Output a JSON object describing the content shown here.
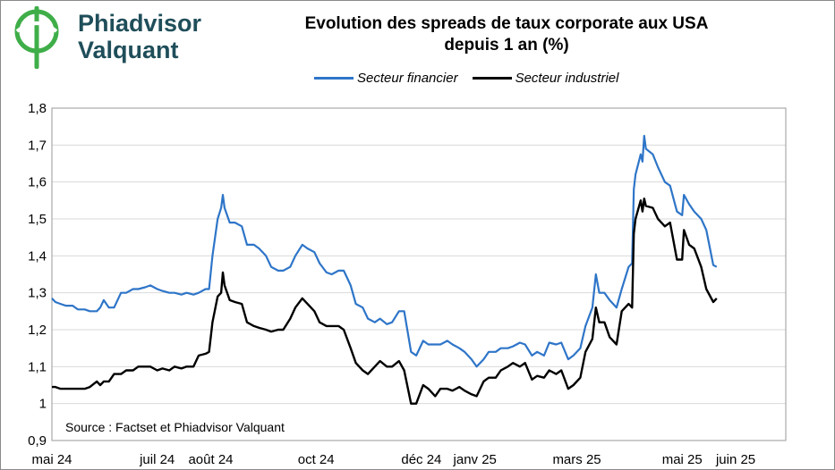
{
  "brand": {
    "line1": "Phiadvisor",
    "line2": "Valquant",
    "colors": {
      "logo_green": "#3fae49",
      "logo_navy": "#1f4e5a"
    }
  },
  "chart_data": {
    "type": "line",
    "title_line1": "Evolution des spreads de taux corporate aux USA",
    "title_line2": "depuis 1 an (%)",
    "source": "Source : Factset et Phiadvisor Valquant",
    "legend_position": "top",
    "grid": true,
    "ylim": [
      0.9,
      1.8
    ],
    "yticks": [
      "0,9",
      "1",
      "1,1",
      "1,2",
      "1,3",
      "1,4",
      "1,5",
      "1,6",
      "1,7",
      "1,8"
    ],
    "ytick_values": [
      0.9,
      1.0,
      1.1,
      1.2,
      1.3,
      1.4,
      1.5,
      1.6,
      1.7,
      1.8
    ],
    "xlim": [
      "2024-05-01",
      "2025-06-30"
    ],
    "xticks": [
      {
        "label": "mai 24",
        "date": "2024-05-01"
      },
      {
        "label": "juil 24",
        "date": "2024-07-01"
      },
      {
        "label": "août 24",
        "date": "2024-08-01"
      },
      {
        "label": "oct 24",
        "date": "2024-10-01"
      },
      {
        "label": "déc 24",
        "date": "2024-12-01"
      },
      {
        "label": "janv 25",
        "date": "2025-01-01"
      },
      {
        "label": "mars 25",
        "date": "2025-03-01"
      },
      {
        "label": "mai 25",
        "date": "2025-05-01"
      },
      {
        "label": "juin 25",
        "date": "2025-06-01"
      }
    ],
    "series": [
      {
        "name": "Secteur financier",
        "color": "#2e75c8",
        "points": [
          [
            "2024-05-01",
            1.285
          ],
          [
            "2024-05-03",
            1.275
          ],
          [
            "2024-05-06",
            1.27
          ],
          [
            "2024-05-09",
            1.265
          ],
          [
            "2024-05-13",
            1.265
          ],
          [
            "2024-05-16",
            1.255
          ],
          [
            "2024-05-20",
            1.255
          ],
          [
            "2024-05-23",
            1.25
          ],
          [
            "2024-05-27",
            1.25
          ],
          [
            "2024-05-29",
            1.26
          ],
          [
            "2024-05-31",
            1.28
          ],
          [
            "2024-06-03",
            1.26
          ],
          [
            "2024-06-06",
            1.26
          ],
          [
            "2024-06-10",
            1.3
          ],
          [
            "2024-06-13",
            1.3
          ],
          [
            "2024-06-17",
            1.31
          ],
          [
            "2024-06-20",
            1.31
          ],
          [
            "2024-06-24",
            1.315
          ],
          [
            "2024-06-27",
            1.32
          ],
          [
            "2024-07-01",
            1.31
          ],
          [
            "2024-07-04",
            1.305
          ],
          [
            "2024-07-08",
            1.3
          ],
          [
            "2024-07-11",
            1.3
          ],
          [
            "2024-07-15",
            1.295
          ],
          [
            "2024-07-18",
            1.3
          ],
          [
            "2024-07-22",
            1.295
          ],
          [
            "2024-07-25",
            1.3
          ],
          [
            "2024-07-29",
            1.31
          ],
          [
            "2024-07-31",
            1.31
          ],
          [
            "2024-08-02",
            1.4
          ],
          [
            "2024-08-05",
            1.5
          ],
          [
            "2024-08-07",
            1.53
          ],
          [
            "2024-08-08",
            1.565
          ],
          [
            "2024-08-09",
            1.53
          ],
          [
            "2024-08-12",
            1.49
          ],
          [
            "2024-08-15",
            1.49
          ],
          [
            "2024-08-19",
            1.48
          ],
          [
            "2024-08-22",
            1.43
          ],
          [
            "2024-08-26",
            1.43
          ],
          [
            "2024-08-29",
            1.42
          ],
          [
            "2024-09-02",
            1.4
          ],
          [
            "2024-09-05",
            1.37
          ],
          [
            "2024-09-09",
            1.36
          ],
          [
            "2024-09-12",
            1.36
          ],
          [
            "2024-09-16",
            1.37
          ],
          [
            "2024-09-19",
            1.4
          ],
          [
            "2024-09-23",
            1.43
          ],
          [
            "2024-09-26",
            1.42
          ],
          [
            "2024-09-30",
            1.41
          ],
          [
            "2024-10-03",
            1.38
          ],
          [
            "2024-10-07",
            1.355
          ],
          [
            "2024-10-10",
            1.35
          ],
          [
            "2024-10-14",
            1.36
          ],
          [
            "2024-10-17",
            1.36
          ],
          [
            "2024-10-21",
            1.32
          ],
          [
            "2024-10-24",
            1.27
          ],
          [
            "2024-10-28",
            1.26
          ],
          [
            "2024-10-31",
            1.23
          ],
          [
            "2024-11-04",
            1.22
          ],
          [
            "2024-11-07",
            1.23
          ],
          [
            "2024-11-11",
            1.215
          ],
          [
            "2024-11-14",
            1.22
          ],
          [
            "2024-11-18",
            1.25
          ],
          [
            "2024-11-21",
            1.25
          ],
          [
            "2024-11-25",
            1.14
          ],
          [
            "2024-11-28",
            1.13
          ],
          [
            "2024-12-02",
            1.17
          ],
          [
            "2024-12-05",
            1.16
          ],
          [
            "2024-12-09",
            1.16
          ],
          [
            "2024-12-12",
            1.16
          ],
          [
            "2024-12-16",
            1.17
          ],
          [
            "2024-12-19",
            1.16
          ],
          [
            "2024-12-23",
            1.15
          ],
          [
            "2024-12-26",
            1.14
          ],
          [
            "2024-12-30",
            1.12
          ],
          [
            "2025-01-02",
            1.1
          ],
          [
            "2025-01-06",
            1.12
          ],
          [
            "2025-01-09",
            1.14
          ],
          [
            "2025-01-13",
            1.14
          ],
          [
            "2025-01-16",
            1.15
          ],
          [
            "2025-01-20",
            1.15
          ],
          [
            "2025-01-23",
            1.155
          ],
          [
            "2025-01-27",
            1.165
          ],
          [
            "2025-01-30",
            1.16
          ],
          [
            "2025-02-03",
            1.13
          ],
          [
            "2025-02-06",
            1.14
          ],
          [
            "2025-02-10",
            1.13
          ],
          [
            "2025-02-13",
            1.165
          ],
          [
            "2025-02-17",
            1.16
          ],
          [
            "2025-02-20",
            1.165
          ],
          [
            "2025-02-24",
            1.12
          ],
          [
            "2025-02-27",
            1.13
          ],
          [
            "2025-03-03",
            1.15
          ],
          [
            "2025-03-06",
            1.21
          ],
          [
            "2025-03-10",
            1.26
          ],
          [
            "2025-03-12",
            1.35
          ],
          [
            "2025-03-14",
            1.3
          ],
          [
            "2025-03-17",
            1.3
          ],
          [
            "2025-03-20",
            1.28
          ],
          [
            "2025-03-24",
            1.26
          ],
          [
            "2025-03-27",
            1.31
          ],
          [
            "2025-03-31",
            1.37
          ],
          [
            "2025-04-02",
            1.38
          ],
          [
            "2025-04-03",
            1.58
          ],
          [
            "2025-04-04",
            1.62
          ],
          [
            "2025-04-07",
            1.675
          ],
          [
            "2025-04-08",
            1.655
          ],
          [
            "2025-04-09",
            1.725
          ],
          [
            "2025-04-10",
            1.69
          ],
          [
            "2025-04-14",
            1.675
          ],
          [
            "2025-04-17",
            1.64
          ],
          [
            "2025-04-21",
            1.6
          ],
          [
            "2025-04-24",
            1.59
          ],
          [
            "2025-04-28",
            1.52
          ],
          [
            "2025-05-01",
            1.51
          ],
          [
            "2025-05-02",
            1.565
          ],
          [
            "2025-05-05",
            1.54
          ],
          [
            "2025-05-08",
            1.52
          ],
          [
            "2025-05-12",
            1.5
          ],
          [
            "2025-05-15",
            1.47
          ],
          [
            "2025-05-19",
            1.375
          ],
          [
            "2025-05-21",
            1.37
          ]
        ]
      },
      {
        "name": "Secteur industriel",
        "color": "#000000",
        "points": [
          [
            "2024-05-01",
            1.045
          ],
          [
            "2024-05-03",
            1.045
          ],
          [
            "2024-05-06",
            1.04
          ],
          [
            "2024-05-09",
            1.04
          ],
          [
            "2024-05-13",
            1.04
          ],
          [
            "2024-05-16",
            1.04
          ],
          [
            "2024-05-20",
            1.04
          ],
          [
            "2024-05-23",
            1.045
          ],
          [
            "2024-05-27",
            1.06
          ],
          [
            "2024-05-29",
            1.05
          ],
          [
            "2024-05-31",
            1.06
          ],
          [
            "2024-06-03",
            1.06
          ],
          [
            "2024-06-06",
            1.08
          ],
          [
            "2024-06-10",
            1.08
          ],
          [
            "2024-06-13",
            1.09
          ],
          [
            "2024-06-17",
            1.09
          ],
          [
            "2024-06-20",
            1.1
          ],
          [
            "2024-06-24",
            1.1
          ],
          [
            "2024-06-27",
            1.1
          ],
          [
            "2024-07-01",
            1.09
          ],
          [
            "2024-07-04",
            1.095
          ],
          [
            "2024-07-08",
            1.09
          ],
          [
            "2024-07-11",
            1.1
          ],
          [
            "2024-07-15",
            1.095
          ],
          [
            "2024-07-18",
            1.1
          ],
          [
            "2024-07-22",
            1.1
          ],
          [
            "2024-07-25",
            1.13
          ],
          [
            "2024-07-29",
            1.135
          ],
          [
            "2024-07-31",
            1.14
          ],
          [
            "2024-08-02",
            1.22
          ],
          [
            "2024-08-05",
            1.29
          ],
          [
            "2024-08-07",
            1.3
          ],
          [
            "2024-08-08",
            1.355
          ],
          [
            "2024-08-09",
            1.32
          ],
          [
            "2024-08-12",
            1.28
          ],
          [
            "2024-08-15",
            1.275
          ],
          [
            "2024-08-19",
            1.27
          ],
          [
            "2024-08-22",
            1.22
          ],
          [
            "2024-08-26",
            1.21
          ],
          [
            "2024-08-29",
            1.205
          ],
          [
            "2024-09-02",
            1.2
          ],
          [
            "2024-09-05",
            1.195
          ],
          [
            "2024-09-09",
            1.2
          ],
          [
            "2024-09-12",
            1.2
          ],
          [
            "2024-09-16",
            1.23
          ],
          [
            "2024-09-19",
            1.26
          ],
          [
            "2024-09-23",
            1.285
          ],
          [
            "2024-09-26",
            1.27
          ],
          [
            "2024-09-30",
            1.25
          ],
          [
            "2024-10-03",
            1.22
          ],
          [
            "2024-10-07",
            1.21
          ],
          [
            "2024-10-10",
            1.21
          ],
          [
            "2024-10-14",
            1.21
          ],
          [
            "2024-10-17",
            1.2
          ],
          [
            "2024-10-21",
            1.15
          ],
          [
            "2024-10-24",
            1.11
          ],
          [
            "2024-10-28",
            1.09
          ],
          [
            "2024-10-31",
            1.08
          ],
          [
            "2024-11-04",
            1.1
          ],
          [
            "2024-11-07",
            1.115
          ],
          [
            "2024-11-11",
            1.1
          ],
          [
            "2024-11-14",
            1.1
          ],
          [
            "2024-11-18",
            1.115
          ],
          [
            "2024-11-21",
            1.09
          ],
          [
            "2024-11-25",
            1.0
          ],
          [
            "2024-11-28",
            1.0
          ],
          [
            "2024-12-02",
            1.05
          ],
          [
            "2024-12-05",
            1.04
          ],
          [
            "2024-12-09",
            1.02
          ],
          [
            "2024-12-12",
            1.04
          ],
          [
            "2024-12-16",
            1.04
          ],
          [
            "2024-12-19",
            1.035
          ],
          [
            "2024-12-23",
            1.045
          ],
          [
            "2024-12-26",
            1.035
          ],
          [
            "2024-12-30",
            1.025
          ],
          [
            "2025-01-02",
            1.02
          ],
          [
            "2025-01-06",
            1.06
          ],
          [
            "2025-01-09",
            1.07
          ],
          [
            "2025-01-13",
            1.07
          ],
          [
            "2025-01-16",
            1.09
          ],
          [
            "2025-01-20",
            1.1
          ],
          [
            "2025-01-23",
            1.11
          ],
          [
            "2025-01-27",
            1.1
          ],
          [
            "2025-01-30",
            1.11
          ],
          [
            "2025-02-03",
            1.065
          ],
          [
            "2025-02-06",
            1.075
          ],
          [
            "2025-02-10",
            1.07
          ],
          [
            "2025-02-13",
            1.09
          ],
          [
            "2025-02-17",
            1.08
          ],
          [
            "2025-02-20",
            1.09
          ],
          [
            "2025-02-24",
            1.04
          ],
          [
            "2025-02-27",
            1.05
          ],
          [
            "2025-03-03",
            1.07
          ],
          [
            "2025-03-06",
            1.14
          ],
          [
            "2025-03-10",
            1.175
          ],
          [
            "2025-03-12",
            1.26
          ],
          [
            "2025-03-14",
            1.22
          ],
          [
            "2025-03-17",
            1.22
          ],
          [
            "2025-03-20",
            1.18
          ],
          [
            "2025-03-24",
            1.16
          ],
          [
            "2025-03-27",
            1.25
          ],
          [
            "2025-03-31",
            1.27
          ],
          [
            "2025-04-02",
            1.26
          ],
          [
            "2025-04-03",
            1.46
          ],
          [
            "2025-04-04",
            1.5
          ],
          [
            "2025-04-07",
            1.55
          ],
          [
            "2025-04-08",
            1.52
          ],
          [
            "2025-04-09",
            1.555
          ],
          [
            "2025-04-10",
            1.535
          ],
          [
            "2025-04-14",
            1.53
          ],
          [
            "2025-04-17",
            1.5
          ],
          [
            "2025-04-21",
            1.48
          ],
          [
            "2025-04-24",
            1.49
          ],
          [
            "2025-04-28",
            1.39
          ],
          [
            "2025-05-01",
            1.39
          ],
          [
            "2025-05-02",
            1.47
          ],
          [
            "2025-05-05",
            1.43
          ],
          [
            "2025-05-08",
            1.42
          ],
          [
            "2025-05-12",
            1.37
          ],
          [
            "2025-05-15",
            1.31
          ],
          [
            "2025-05-19",
            1.275
          ],
          [
            "2025-05-21",
            1.285
          ]
        ]
      }
    ]
  }
}
